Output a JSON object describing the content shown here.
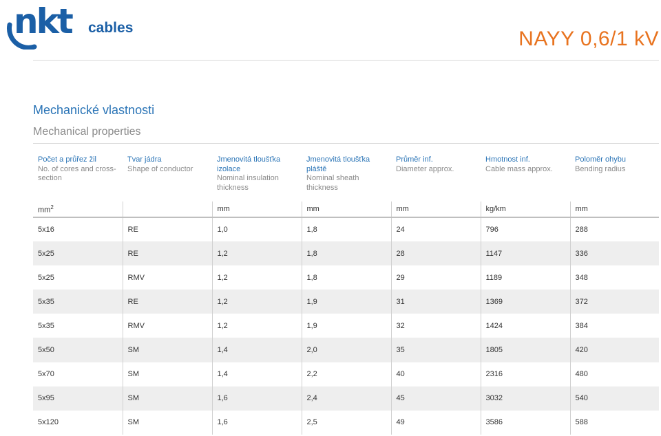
{
  "brand": {
    "logo_text_main": "nkt",
    "logo_text_sub": "cables",
    "color": "#1b5fa6"
  },
  "document": {
    "title": "NAYY 0,6/1 kV",
    "title_color": "#e8731f"
  },
  "section": {
    "title_cz": "Mechanické vlastnosti",
    "title_en": "Mechanical properties",
    "accent_color": "#2a74b6"
  },
  "table": {
    "columns": [
      {
        "cz": "Počet a průřez žil",
        "en": "No. of cores and cross-section",
        "unit": "mm",
        "unit_sup": "2"
      },
      {
        "cz": "Tvar jádra",
        "en": "Shape of conductor",
        "unit": "",
        "unit_sup": ""
      },
      {
        "cz": "Jmenovitá tloušťka izolace",
        "en": "Nominal insulation thickness",
        "unit": "mm",
        "unit_sup": ""
      },
      {
        "cz": "Jmenovitá tloušťka pláště",
        "en": "Nominal sheath thickness",
        "unit": "mm",
        "unit_sup": ""
      },
      {
        "cz": "Průměr inf.",
        "en": "Diameter approx.",
        "unit": "mm",
        "unit_sup": ""
      },
      {
        "cz": "Hmotnost inf.",
        "en": "Cable mass approx.",
        "unit": "kg/km",
        "unit_sup": ""
      },
      {
        "cz": "Poloměr ohybu",
        "en": "Bending radius",
        "unit": "mm",
        "unit_sup": ""
      }
    ],
    "rows": [
      [
        "5x16",
        "RE",
        "1,0",
        "1,8",
        "24",
        "796",
        "288"
      ],
      [
        "5x25",
        "RE",
        "1,2",
        "1,8",
        "28",
        "1147",
        "336"
      ],
      [
        "5x25",
        "RMV",
        "1,2",
        "1,8",
        "29",
        "1189",
        "348"
      ],
      [
        "5x35",
        "RE",
        "1,2",
        "1,9",
        "31",
        "1369",
        "372"
      ],
      [
        "5x35",
        "RMV",
        "1,2",
        "1,9",
        "32",
        "1424",
        "384"
      ],
      [
        "5x50",
        "SM",
        "1,4",
        "2,0",
        "35",
        "1805",
        "420"
      ],
      [
        "5x70",
        "SM",
        "1,4",
        "2,2",
        "40",
        "2316",
        "480"
      ],
      [
        "5x95",
        "SM",
        "1,6",
        "2,4",
        "45",
        "3032",
        "540"
      ],
      [
        "5x120",
        "SM",
        "1,6",
        "2,5",
        "49",
        "3586",
        "588"
      ]
    ]
  }
}
